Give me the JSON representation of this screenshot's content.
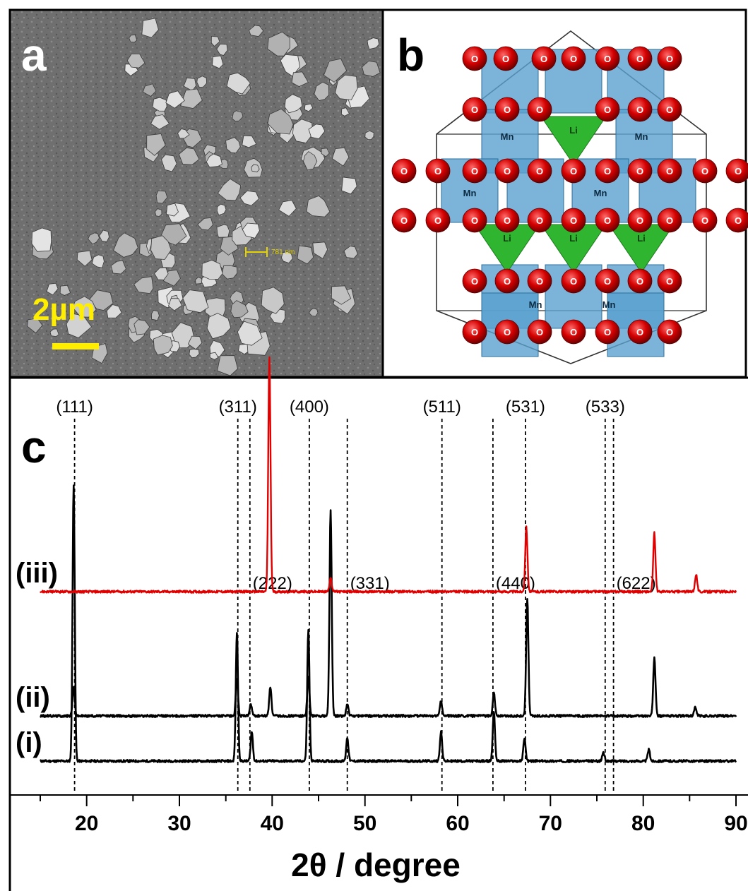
{
  "panels": {
    "a": {
      "letter": "a",
      "scale_bar_label": "2µm",
      "measure_label": "781 nm",
      "scale_bar_color": "#ffee00"
    },
    "b": {
      "letter": "b",
      "atom_labels": {
        "oxygen": "O",
        "manganese": "Mn",
        "lithium": "Li"
      },
      "colors": {
        "oxygen": "#d40000",
        "octahedra": "#5aa0d0",
        "tetrahedra": "#2fb52f"
      }
    },
    "c": {
      "letter": "c"
    }
  },
  "chart_data": {
    "type": "line",
    "xlabel": "2θ / degree",
    "ylabel": "",
    "xlim": [
      15,
      90
    ],
    "x_ticks": [
      20,
      30,
      40,
      50,
      60,
      70,
      80,
      90
    ],
    "grid": false,
    "series": [
      {
        "name": "(i)",
        "color": "#000000",
        "peaks": [
          {
            "x": 18.6,
            "height": 0.94
          },
          {
            "x": 36.2,
            "height": 0.44
          },
          {
            "x": 37.8,
            "height": 0.1
          },
          {
            "x": 43.9,
            "height": 0.45
          },
          {
            "x": 48.1,
            "height": 0.08
          },
          {
            "x": 58.2,
            "height": 0.1
          },
          {
            "x": 63.9,
            "height": 0.17
          },
          {
            "x": 67.2,
            "height": 0.08
          },
          {
            "x": 75.7,
            "height": 0.03
          },
          {
            "x": 80.6,
            "height": 0.04
          }
        ]
      },
      {
        "name": "(ii)",
        "color": "#000000",
        "peaks": [
          {
            "x": 18.6,
            "height": 0.1
          },
          {
            "x": 36.2,
            "height": 0.13
          },
          {
            "x": 37.7,
            "height": 0.04
          },
          {
            "x": 39.8,
            "height": 0.1
          },
          {
            "x": 43.9,
            "height": 0.13
          },
          {
            "x": 46.3,
            "height": 0.7
          },
          {
            "x": 48.1,
            "height": 0.04
          },
          {
            "x": 58.2,
            "height": 0.05
          },
          {
            "x": 63.9,
            "height": 0.08
          },
          {
            "x": 67.5,
            "height": 0.4
          },
          {
            "x": 81.2,
            "height": 0.2
          },
          {
            "x": 85.6,
            "height": 0.03
          }
        ]
      },
      {
        "name": "(iii)",
        "color": "#e00000",
        "peaks": [
          {
            "x": 39.7,
            "height": 0.8
          },
          {
            "x": 46.3,
            "height": 0.05
          },
          {
            "x": 67.4,
            "height": 0.22
          },
          {
            "x": 81.2,
            "height": 0.2
          },
          {
            "x": 85.7,
            "height": 0.06
          }
        ]
      }
    ],
    "reference_lines": [
      {
        "x": 18.7,
        "label": "(111)",
        "label_row": "top"
      },
      {
        "x": 36.3,
        "label": "(311)",
        "label_row": "top"
      },
      {
        "x": 37.6,
        "label": "(222)",
        "label_row": "middle"
      },
      {
        "x": 44.0,
        "label": "(400)",
        "label_row": "top"
      },
      {
        "x": 48.1,
        "label": "(331)",
        "label_row": "middle"
      },
      {
        "x": 58.3,
        "label": "(511)",
        "label_row": "top"
      },
      {
        "x": 63.8,
        "label": "(440)",
        "label_row": "middle"
      },
      {
        "x": 67.3,
        "label": "(531)",
        "label_row": "top"
      },
      {
        "x": 75.9,
        "label": "(533)",
        "label_row": "top"
      },
      {
        "x": 76.8,
        "label": "(622)",
        "label_row": "middle"
      }
    ]
  }
}
